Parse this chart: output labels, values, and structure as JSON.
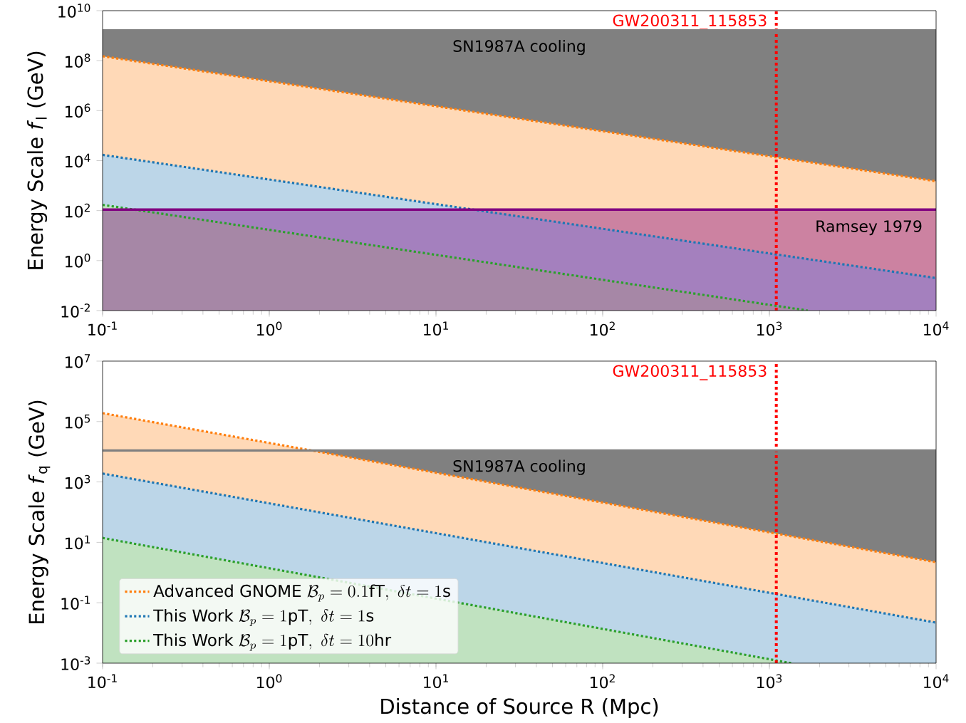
{
  "chart_data": [
    {
      "type": "area",
      "ylabel": "Energy Scale *f*$_{l}$ (GeV)",
      "log": "xy",
      "line_style": "dotted",
      "xlim": [
        0.1,
        10000
      ],
      "ylim": [
        0.01,
        10000000000
      ],
      "xticks": [
        {
          "value": 0.1,
          "label": "10$^{-1}$"
        },
        {
          "value": 1,
          "label": "10$^{0}$"
        },
        {
          "value": 10,
          "label": "10$^{1}$"
        },
        {
          "value": 100,
          "label": "10$^{2}$"
        },
        {
          "value": 1000,
          "label": "10$^{3}$"
        },
        {
          "value": 10000,
          "label": "10$^{4}$"
        }
      ],
      "yticks": [
        {
          "value": 0.01,
          "label": "10$^{-2}$"
        },
        {
          "value": 1,
          "label": "10$^{0}$"
        },
        {
          "value": 100,
          "label": "10$^{2}$"
        },
        {
          "value": 10000,
          "label": "10$^{4}$"
        },
        {
          "value": 1000000,
          "label": "10$^{6}$"
        },
        {
          "value": 100000000,
          "label": "10$^{8}$"
        },
        {
          "value": 10000000000,
          "label": "10$^{10}$"
        }
      ],
      "series": [
        {
          "color": "#ff7f0e",
          "x": [
            0.1,
            10000
          ],
          "values": [
            150000000,
            1500
          ]
        },
        {
          "color": "#1f77b4",
          "x": [
            0.1,
            10000
          ],
          "values": [
            17000,
            0.2
          ]
        },
        {
          "color": "#2ca02c",
          "x": [
            0.1,
            1700
          ],
          "values": [
            170,
            0.01
          ]
        }
      ],
      "bands": [
        {
          "axis": "y",
          "from": 0.01,
          "to": 1600000000,
          "label": "SN1987A cooling",
          "color": "#808080"
        },
        {
          "axis": "y",
          "from": 0.01,
          "to": 110,
          "label": "Ramsey 1979",
          "color": "#800080"
        }
      ],
      "ref_lines": [
        {
          "axis": "x",
          "value": 1100,
          "label": "GW200311_115853",
          "color": "#ff0000",
          "line_style": "dotted"
        },
        {
          "axis": "y",
          "value": 1600000000,
          "color": "#808080",
          "line_style": "solid"
        },
        {
          "axis": "y",
          "value": 110,
          "color": "#800080",
          "line_style": "solid"
        }
      ]
    },
    {
      "type": "area",
      "xlabel": "Distance of Source R (Mpc)",
      "ylabel": "Energy Scale *f*$_{q}$ (GeV)",
      "log": "xy",
      "line_style": "dotted",
      "legend": "bottom left",
      "xlim": [
        0.1,
        10000
      ],
      "ylim": [
        0.001,
        10000000
      ],
      "xticks": [
        {
          "value": 0.1,
          "label": "10$^{-1}$"
        },
        {
          "value": 1,
          "label": "10$^{0}$"
        },
        {
          "value": 10,
          "label": "10$^{1}$"
        },
        {
          "value": 100,
          "label": "10$^{2}$"
        },
        {
          "value": 1000,
          "label": "10$^{3}$"
        },
        {
          "value": 10000,
          "label": "10$^{4}$"
        }
      ],
      "yticks": [
        {
          "value": 0.001,
          "label": "10$^{-3}$"
        },
        {
          "value": 0.1,
          "label": "10$^{-1}$"
        },
        {
          "value": 10,
          "label": "10$^{1}$"
        },
        {
          "value": 1000,
          "label": "10$^{3}$"
        },
        {
          "value": 100000,
          "label": "10$^{5}$"
        },
        {
          "value": 10000000,
          "label": "10$^{7}$"
        }
      ],
      "series": [
        {
          "name": "\\text{Advanced GNOME }\\mathcal{B}_p=0.1\\text{fT},\\ \\delta t=1\\text{s}",
          "color": "#ff7f0e",
          "x": [
            0.1,
            10000
          ],
          "values": [
            190000,
            2.2
          ]
        },
        {
          "name": "\\text{This Work }\\mathcal{B}_p=1\\text{pT},\\ \\delta t=1\\text{s}",
          "color": "#1f77b4",
          "x": [
            0.1,
            10000
          ],
          "values": [
            1900,
            0.022
          ]
        },
        {
          "name": "\\text{This Work }\\mathcal{B}_p=1\\text{pT},\\ \\delta t=10\\text{hr}",
          "color": "#2ca02c",
          "x": [
            0.1,
            1350
          ],
          "values": [
            14,
            0.001
          ]
        }
      ],
      "bands": [
        {
          "axis": "y",
          "from": 0.001,
          "to": 11000,
          "label": "SN1987A cooling",
          "color": "#808080"
        }
      ],
      "ref_lines": [
        {
          "axis": "x",
          "value": 1100,
          "label": "GW200311_115853",
          "color": "#ff0000",
          "line_style": "dotted"
        },
        {
          "axis": "y",
          "value": 11000,
          "color": "#808080",
          "line_style": "solid"
        }
      ]
    }
  ]
}
